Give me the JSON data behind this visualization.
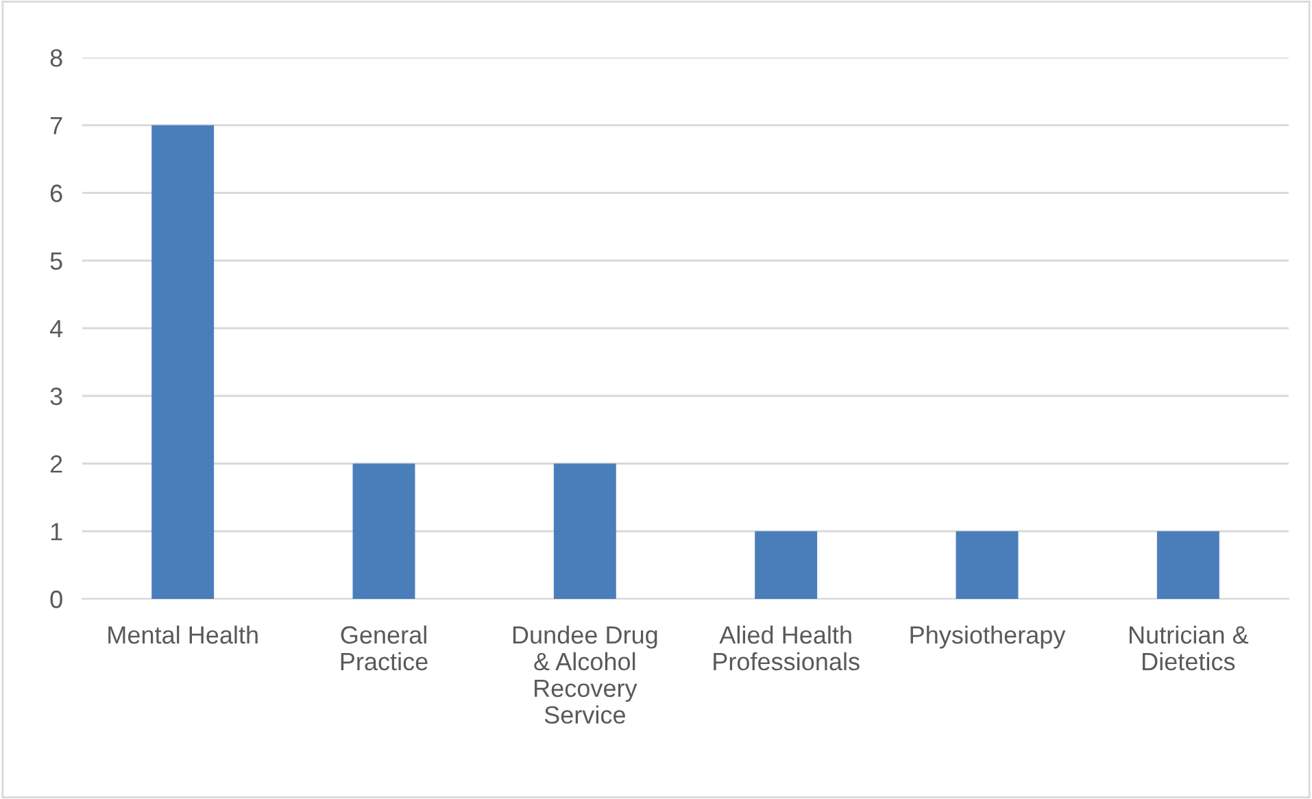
{
  "chart_data": {
    "type": "bar",
    "categories": [
      "Mental Health",
      "General\nPractice",
      "Dundee Drug\n& Alcohol\nRecovery\nService",
      "Alied Health\nProfessionals",
      "Physiotherapy",
      "Nutrician &\nDietetics"
    ],
    "values": [
      7,
      2,
      2,
      1,
      1,
      1
    ],
    "color": "#4a7ebb",
    "ylim": [
      0,
      8
    ],
    "yticks": [
      0,
      1,
      2,
      3,
      4,
      5,
      6,
      7,
      8
    ],
    "grid": "y",
    "legend": false
  }
}
